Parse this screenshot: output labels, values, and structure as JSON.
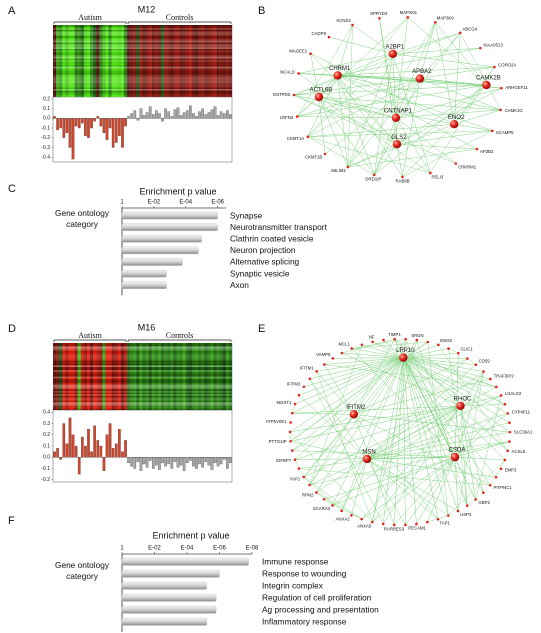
{
  "figure": {
    "A": {
      "label": "A",
      "title": "M12",
      "ylim": [
        -0.45,
        0.22
      ],
      "yticks": [
        0.2,
        0.1,
        {
          "value": 0,
          "label": "0.0"
        },
        -0.1,
        -0.2,
        -0.3,
        -0.4
      ],
      "series": [
        {
          "name": "Autism",
          "color": "#d2452a",
          "values": [
            0.02,
            -0.12,
            -0.1,
            -0.2,
            -0.15,
            -0.3,
            -0.42,
            -0.08,
            -0.1,
            -0.05,
            -0.18,
            -0.2,
            -0.1,
            -0.03,
            0.02,
            -0.08,
            -0.15,
            -0.22,
            -0.1,
            -0.3,
            -0.25,
            -0.18,
            -0.3,
            -0.08
          ]
        },
        {
          "name": "Controls",
          "color": "#a6a6a6",
          "values": [
            0.02,
            0.05,
            0.08,
            -0.02,
            0.1,
            0.03,
            0.06,
            0.12,
            0.04,
            0.08,
            0.05,
            -0.03,
            0.1,
            0.07,
            0.02,
            0.09,
            0.11,
            0.03,
            0.06,
            0.08,
            0.13,
            0.05,
            0.02,
            0.07,
            0.1,
            0.04,
            0.06,
            0.09,
            0.12,
            0.03,
            0.07,
            0.05,
            0.08,
            0.04
          ]
        }
      ]
    },
    "B": {
      "label": "B",
      "hubs": [
        "A2BP1",
        "CHRM1",
        "APBA2",
        "CAMK2B",
        "ACTL6B",
        "CNTNAP1",
        "ENO2",
        "GLS2"
      ],
      "genes": [
        "SPRYD3",
        "MAP2K5",
        "MAP3K9",
        "ABCG4",
        "KIAA0513",
        "CORO2A",
        "ARHGEF11",
        "CAMK1G",
        "SCAMP5",
        "AP3B2",
        "CRKRM1",
        "PELI3",
        "RAB8B",
        "DRD1IP",
        "ABLIM2",
        "CKMT1B",
        "CKMT1A",
        "LRFN2",
        "ENTPD6",
        "NCALD",
        "MAGEE1",
        "CADPS",
        "KCNS2"
      ]
    },
    "C": {
      "label": "C",
      "type": "bar",
      "title": "Enrichment p value",
      "ylabel": [
        "Gene ontology",
        "category"
      ],
      "log": true,
      "xlim": [
        1,
        3e-07
      ],
      "xticks": [
        1,
        {
          "value": 0.01,
          "label": "E-02"
        },
        {
          "value": 0.0001,
          "label": "E-04"
        },
        {
          "value": 1e-06,
          "label": "E-06"
        }
      ],
      "categories": [
        "Synapse",
        "Neurotransmitter transport",
        "Clathrin coated vesicle",
        "Neuron projection",
        "Alternative splicing",
        "Synaptic vesicle",
        "Axon"
      ],
      "values": [
        1e-06,
        1e-06,
        1e-05,
        1.6e-05,
        0.00016,
        0.0016,
        0.0016
      ],
      "color": "#c4c4c4"
    },
    "D": {
      "label": "D",
      "title": "M16",
      "ylim": [
        -0.22,
        0.42
      ],
      "yticks": [
        0.4,
        0.3,
        0.2,
        0.1,
        {
          "value": 0,
          "label": "0.0"
        },
        -0.1,
        -0.2
      ],
      "series": [
        {
          "name": "Autism",
          "color": "#d2452a",
          "values": [
            0.05,
            0.08,
            -0.02,
            0.3,
            0.12,
            0.35,
            0.2,
            0.1,
            -0.15,
            0.18,
            0.1,
            0.25,
            0.05,
            0.28,
            0.15,
            0.1,
            -0.12,
            0.2,
            0.3,
            0.08,
            0.12,
            0.25,
            0.05,
            0.15
          ]
        },
        {
          "name": "Controls",
          "color": "#a6a6a6",
          "values": [
            -0.05,
            -0.08,
            -0.1,
            -0.04,
            -0.12,
            -0.06,
            -0.09,
            -0.03,
            -0.1,
            -0.07,
            -0.11,
            -0.05,
            -0.08,
            -0.06,
            -0.1,
            -0.04,
            -0.09,
            -0.07,
            -0.12,
            -0.05,
            -0.03,
            -0.08,
            -0.1,
            -0.06,
            -0.09,
            -0.04,
            -0.07,
            -0.11,
            -0.05,
            -0.08,
            -0.06,
            -0.02,
            -0.1,
            -0.05
          ]
        }
      ]
    },
    "E": {
      "label": "E",
      "hubs": [
        "LRP10",
        "RHOC",
        "IFITM2",
        "MSN",
        "CSDA"
      ],
      "genes": [
        "TIMP1",
        "SRGN",
        "GNG5",
        "CLIC1",
        "CD59",
        "TRAF3IP2",
        "LGALS3",
        "CYP4F11",
        "SLC39A1",
        "ACSL5",
        "EMP3",
        "PITPNC1",
        "GBP2",
        "USP3",
        "TAP1",
        "PECAM1",
        "RARRES3",
        "ANXA5",
        "ANXA2",
        "SCARA3",
        "RPN2",
        "YAP1",
        "IGFBP7",
        "PTTG1IP",
        "ATP6V0E1",
        "MGST1",
        "IFITM3",
        "IFITM1",
        "VAMP5",
        "MCL1",
        "NF"
      ]
    },
    "F": {
      "label": "F",
      "type": "bar",
      "title": "Enrichment p value",
      "ylabel": [
        "Gene ontology",
        "category"
      ],
      "log": true,
      "xlim": [
        1,
        1e-08
      ],
      "xticks": [
        1,
        {
          "value": 0.01,
          "label": "E-02"
        },
        {
          "value": 0.0001,
          "label": "E-04"
        },
        {
          "value": 1e-06,
          "label": "E-06"
        },
        {
          "value": 1e-08,
          "label": "E-08"
        }
      ],
      "categories": [
        "Immune response",
        "Response to wounding",
        "Integrin complex",
        "Regulation of cell proliferation",
        "Ag processing and presentation",
        "Inflammatory response"
      ],
      "values": [
        1.6e-08,
        1e-06,
        6e-06,
        1.6e-06,
        1.6e-06,
        6e-06
      ],
      "color": "#c4c4c4"
    }
  }
}
